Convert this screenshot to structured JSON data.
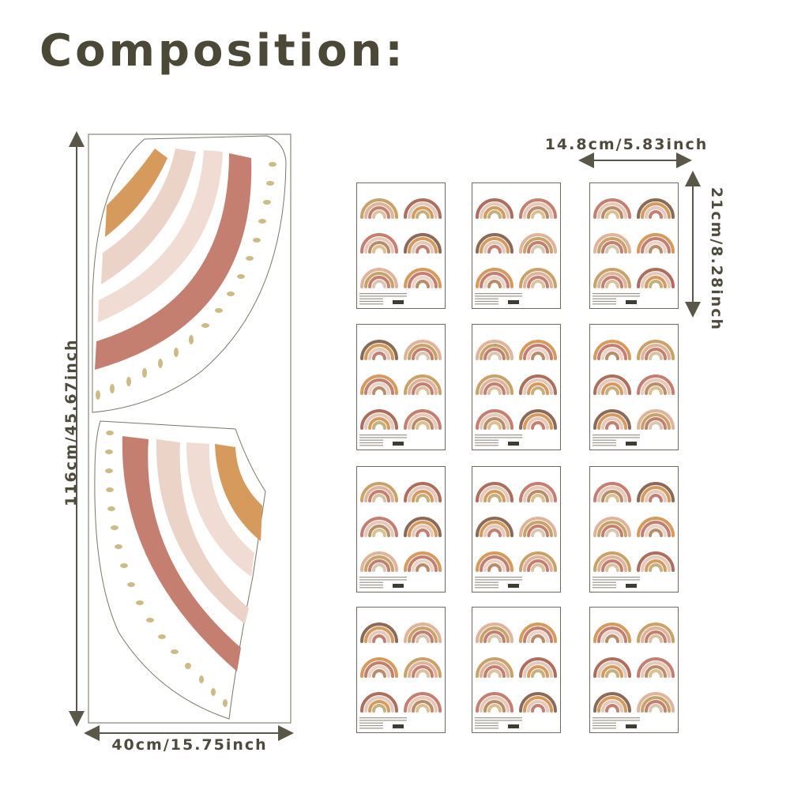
{
  "title": "Composition:",
  "dimensions": {
    "large_height": "116cm/45.67inch",
    "large_width": "40cm/15.75inch",
    "sheet_width": "14.8cm/5.83inch",
    "sheet_height": "21cm/8.28inch"
  },
  "sheet_count": 12,
  "colors": {
    "text": "#4e4a3c",
    "terracotta": "#c07a6a",
    "blush": "#ecd3c8",
    "light_blush": "#f3e3db",
    "mustard": "#d59a5c",
    "olive_dash": "#cdbb86",
    "border": "#6f6a5c"
  }
}
